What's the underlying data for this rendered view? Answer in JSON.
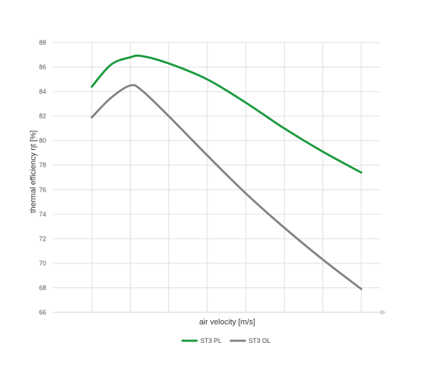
{
  "chart_data": {
    "type": "line",
    "title": "",
    "xlabel": "air velocity [m/s]",
    "ylabel": "thermal efficiency ηt [%]",
    "x_ticks": [],
    "ylim": [
      66,
      88
    ],
    "y_ticks": [
      "66",
      "68",
      "70",
      "72",
      "74",
      "76",
      "78",
      "80",
      "82",
      "84",
      "86",
      "88"
    ],
    "x": [
      1,
      1.5,
      2,
      2.3,
      3,
      4,
      5,
      6,
      7,
      8
    ],
    "grid": true,
    "legend_position": "bottom-center",
    "series": [
      {
        "name": "ST3 PL",
        "color": "#1b9a3e",
        "values": [
          84.4,
          86.2,
          86.8,
          86.9,
          86.3,
          85.0,
          83.1,
          81.0,
          79.1,
          77.4
        ]
      },
      {
        "name": "ST3 OL",
        "color": "#838383",
        "values": [
          81.9,
          83.5,
          84.5,
          84.1,
          82.0,
          78.8,
          75.7,
          72.9,
          70.3,
          67.9
        ]
      }
    ]
  }
}
